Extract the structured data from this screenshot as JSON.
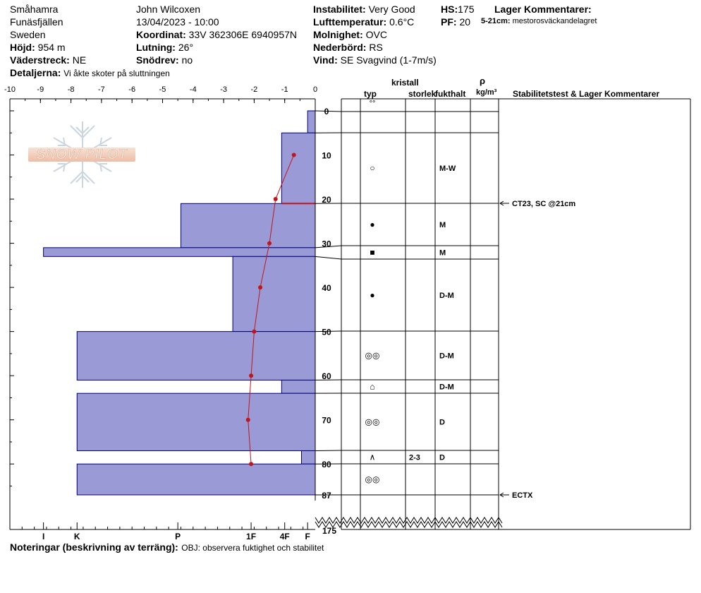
{
  "header": {
    "location": "Småhamra",
    "area": "Funäsfjällen",
    "country": "Sweden",
    "elevation_label": "Höjd:",
    "elevation": "954 m",
    "aspect_label": "Väderstreck:",
    "aspect": "NE",
    "details_label": "Detaljerna:",
    "details": "Vi åkte skoter på sluttningen",
    "observer": "John Wilcoxen",
    "datetime": "13/04/2023 - 10:00",
    "coord_label": "Koordinat:",
    "coord": "33V 362306E 6940957N",
    "slope_label": "Lutning:",
    "slope": "26°",
    "drift_label": "Snödrev:",
    "drift": "no",
    "instability_label": "Instabilitet:",
    "instability": "Very Good",
    "airtemp_label": "Lufttemperatur:",
    "airtemp": "0.6°C",
    "sky_label": "Molnighet:",
    "sky": "OVC",
    "precip_label": "Nederbörd:",
    "precip": "RS",
    "wind_label": "Vind:",
    "wind": "SE Svagvind (1-7m/s)",
    "hs_label": "HS:",
    "hs": "175",
    "pf_label": "PF:",
    "pf": "20",
    "layer_comments_label": "Lager Kommentarer:",
    "layer_comment_depth": "5-21cm:",
    "layer_comment_text": "mestorosväckandelagret"
  },
  "footer": {
    "notes_label": "Noteringar (beskrivning av terräng):",
    "notes_text": "OBJ: observera fuktighet och stabilitet"
  },
  "logo": {
    "text": "SNOW PILOT"
  },
  "table_headers": {
    "crystal": "kristall",
    "type": "typ",
    "size": "storlek",
    "moisture": "fukthalt",
    "rho": "ρ",
    "rho_unit": "kg/m³",
    "stability": "Stabilitetstest & Lager Kommentarer"
  },
  "colors": {
    "hardness_fill": "#9a9ad6",
    "hardness_stroke": "#00007a",
    "temp_line": "#c0161b",
    "failure_line": "#c0161b"
  },
  "chart_data": {
    "type": "snow-profile",
    "depth_axis": {
      "range": [
        0,
        87
      ],
      "ticks": [
        0,
        10,
        20,
        30,
        40,
        50,
        60,
        70,
        80,
        87
      ],
      "total_label": "175"
    },
    "temperature_axis": {
      "range": [
        -10,
        0
      ],
      "ticks": [
        "-10",
        "-9",
        "-8",
        "-7",
        "-6",
        "-5",
        "-4",
        "-3",
        "-2",
        "-1",
        "0"
      ]
    },
    "hardness_axis": {
      "labels": [
        {
          "label": "I",
          "temp_pos": -8.9
        },
        {
          "label": "K",
          "temp_pos": -7.8
        },
        {
          "label": "P",
          "temp_pos": -4.5
        },
        {
          "label": "1F",
          "temp_pos": -2.1
        },
        {
          "label": "4F",
          "temp_pos": -1.0
        },
        {
          "label": "F",
          "temp_pos": -0.25
        }
      ]
    },
    "layers": [
      {
        "top": 0,
        "bottom": 5,
        "hardness": 0.25,
        "type": "°°",
        "size": "",
        "moisture": ""
      },
      {
        "top": 5,
        "bottom": 21,
        "hardness": 1.1,
        "type": "○",
        "size": "",
        "moisture": "M-W"
      },
      {
        "top": 21,
        "bottom": 31,
        "hardness": 4.4,
        "type": "●",
        "size": "",
        "moisture": "M"
      },
      {
        "top": 31,
        "bottom": 33,
        "hardness": 8.9,
        "type": "■",
        "size": "",
        "moisture": "M"
      },
      {
        "top": 33,
        "bottom": 50,
        "hardness": 2.7,
        "type": "●",
        "size": "",
        "moisture": "D-M"
      },
      {
        "top": 50,
        "bottom": 61,
        "hardness": 7.8,
        "type": "◎◎",
        "size": "",
        "moisture": "D-M"
      },
      {
        "top": 61,
        "bottom": 64,
        "hardness": 1.1,
        "type": "⌂",
        "size": "",
        "moisture": "D-M"
      },
      {
        "top": 64,
        "bottom": 77,
        "hardness": 7.8,
        "type": "◎◎",
        "size": "",
        "moisture": "D"
      },
      {
        "top": 77,
        "bottom": 80,
        "hardness": 0.45,
        "type": "∧",
        "size": "2-3",
        "moisture": "D"
      },
      {
        "top": 80,
        "bottom": 87,
        "hardness": 7.8,
        "type": "◎◎",
        "size": "",
        "moisture": ""
      }
    ],
    "temperature_profile": [
      {
        "depth": 10,
        "temp": -0.7
      },
      {
        "depth": 20,
        "temp": -1.3
      },
      {
        "depth": 30,
        "temp": -1.5
      },
      {
        "depth": 40,
        "temp": -1.8
      },
      {
        "depth": 50,
        "temp": -2.0
      },
      {
        "depth": 60,
        "temp": -2.1
      },
      {
        "depth": 70,
        "temp": -2.2
      },
      {
        "depth": 80,
        "temp": -2.1
      }
    ],
    "stability_tests": [
      {
        "depth": 21,
        "text": "CT23, SC @21cm"
      },
      {
        "depth": 87,
        "text": "ECTX"
      }
    ],
    "failure_layer_depth": 21
  }
}
